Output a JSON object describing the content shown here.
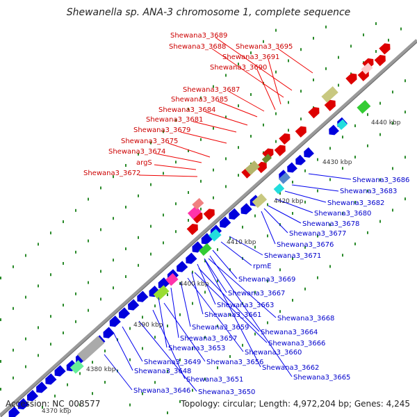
{
  "title": "Shewanella sp. ANA-3 chromosome 1, complete sequence",
  "accession": "Accession: NC_008577",
  "topology": "Topology: circular; Length: 4,972,204 bp; Genes: 4,245",
  "colors": {
    "upper": "#cc0000",
    "lower": "#0000cc",
    "backbone": "#9a9a9a",
    "tick": "#2a8a2a"
  },
  "ticks": [
    "4370 kbp",
    "4380 kbp",
    "4390 kbp",
    "4400 kbp",
    "4410 kbp",
    "4420 kbp",
    "4430 kbp",
    "4440 kbp"
  ],
  "upper_labels": [
    "Shewana3_3689",
    "Shewana3_3688",
    "Shewana3_3695",
    "Shewana3_3691",
    "Shewana3_3690",
    "Shewana3_3687",
    "Shewana3_3685",
    "Shewana3_3684",
    "Shewana3_3681",
    "Shewana3_3679",
    "Shewana3_3675",
    "Shewana3_3674",
    "argS",
    "Shewana3_3672"
  ],
  "lower_labels": [
    "Shewana3_3686",
    "Shewana3_3683",
    "Shewana3_3682",
    "Shewana3_3680",
    "Shewana3_3678",
    "Shewana3_3677",
    "Shewana3_3676",
    "Shewana3_3671",
    "rpmE",
    "Shewana3_3669",
    "Shewana3_3667",
    "Shewana3_3663",
    "Shewana3_3661",
    "Shewana3_3668",
    "Shewana3_3659",
    "Shewana3_3664",
    "Shewana3_3657",
    "Shewana3_3666",
    "Shewana3_3653",
    "Shewana3_3660",
    "Shewana3_3649",
    "Shewana3_3656",
    "Shewana3_3662",
    "Shewana3_3648",
    "Shewana3_3665",
    "Shewana3_3651",
    "Shewana3_3646",
    "Shewana3_3650"
  ]
}
